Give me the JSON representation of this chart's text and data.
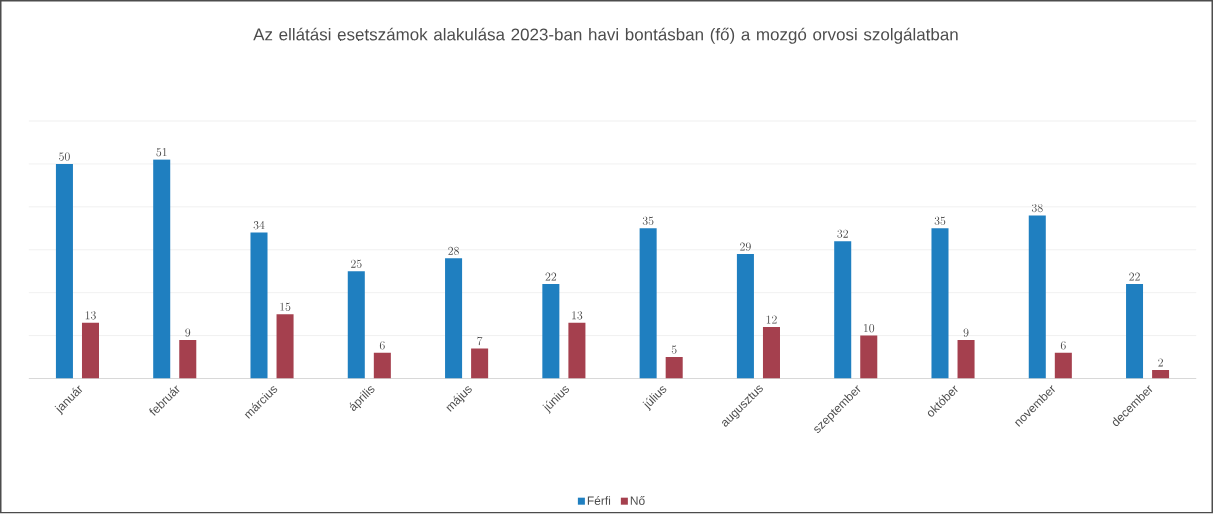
{
  "chart_data": {
    "type": "bar",
    "title": "Az ellátási esetszámok alakulása 2023-ban havi bontásban (fő) a mozgó orvosi szolgálatban",
    "categories": [
      "január",
      "február",
      "március",
      "április",
      "május",
      "június",
      "július",
      "augusztus",
      "szeptember",
      "október",
      "november",
      "december"
    ],
    "series": [
      {
        "name": "Férfi",
        "color": "#1f7fc0",
        "values": [
          50,
          51,
          34,
          25,
          28,
          22,
          35,
          29,
          32,
          35,
          38,
          22
        ]
      },
      {
        "name": "Nő",
        "color": "#a5404e",
        "values": [
          13,
          9,
          15,
          6,
          7,
          13,
          5,
          12,
          10,
          9,
          6,
          2
        ]
      }
    ],
    "ylim": [
      0,
      60
    ],
    "yticks": [
      {
        "value": 0,
        "label": null
      },
      {
        "value": 10,
        "label": null
      },
      {
        "value": 20,
        "label": null
      },
      {
        "value": 30,
        "label": null
      },
      {
        "value": 40,
        "label": null
      },
      {
        "value": 50,
        "label": null
      },
      {
        "value": 60,
        "label": null
      }
    ],
    "tick_labels": "x",
    "grid": "y",
    "legend": "bottom",
    "data_labels": true
  }
}
